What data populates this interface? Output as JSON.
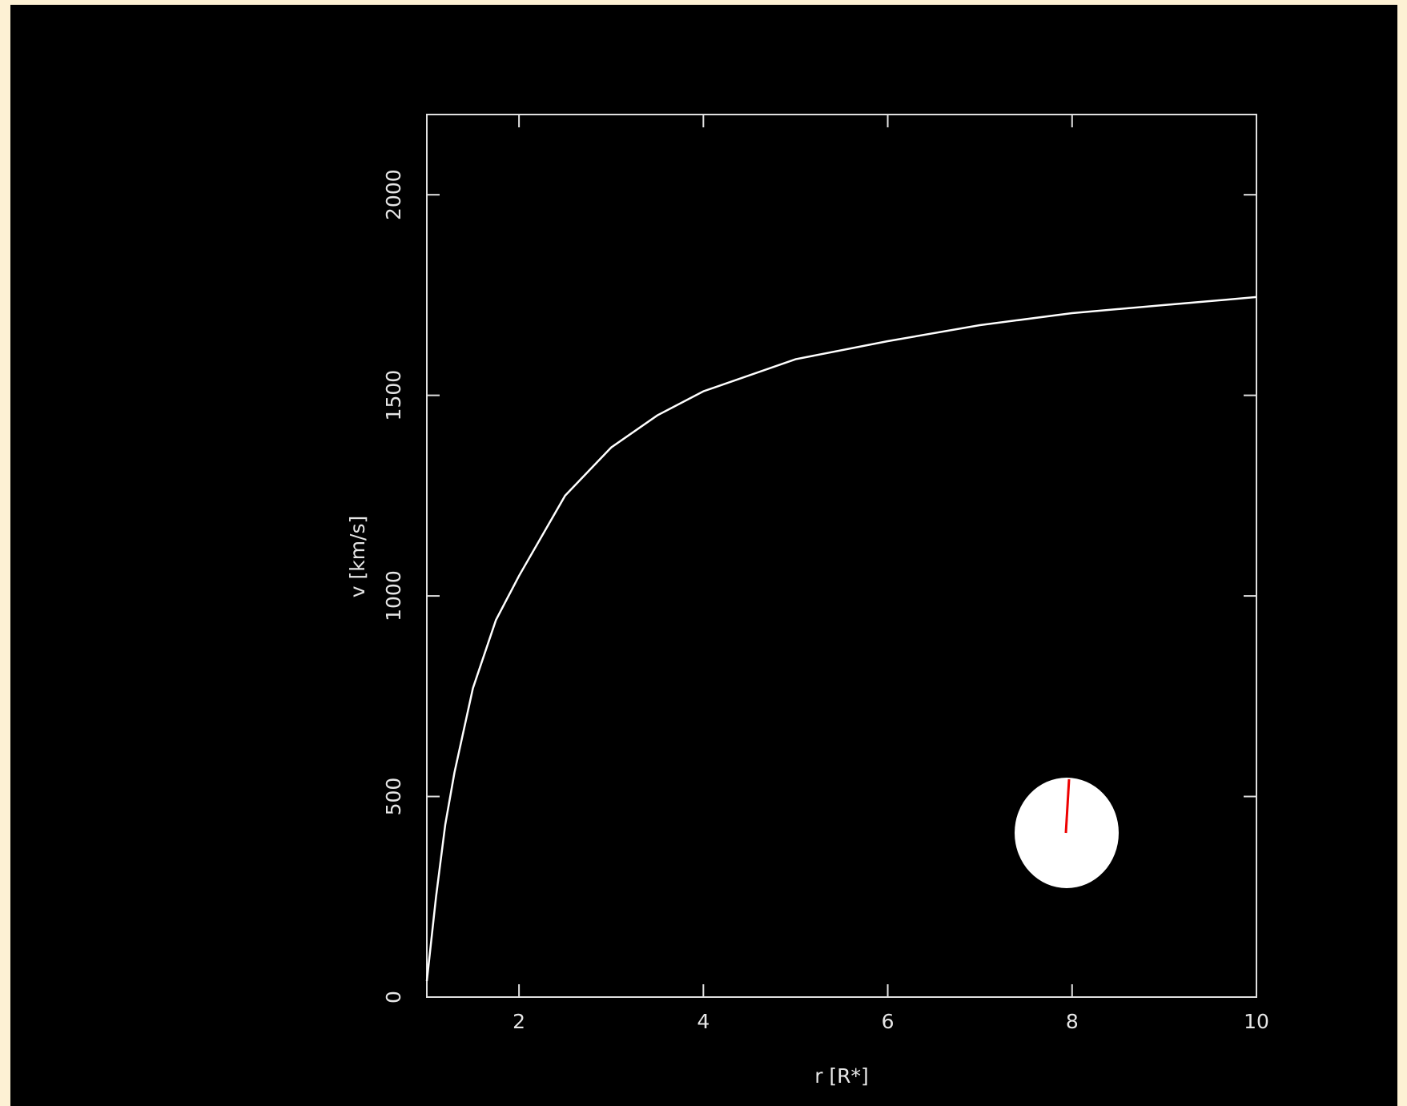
{
  "chart_data": {
    "type": "line",
    "x_label": "r [R*]",
    "y_label": "v [km/s]",
    "x": [
      1.0,
      1.1,
      1.2,
      1.3,
      1.5,
      1.75,
      2,
      2.5,
      3,
      3.5,
      4,
      5,
      6,
      7,
      8,
      9,
      10
    ],
    "series": [
      {
        "color": "#ffffff",
        "values": [
          40,
          250,
          430,
          560,
          770,
          940,
          1050,
          1250,
          1370,
          1450,
          1510,
          1590,
          1635,
          1675,
          1705,
          1725,
          1745
        ]
      }
    ],
    "xlim": [
      1,
      10
    ],
    "xticks": [
      2,
      4,
      6,
      8,
      10
    ],
    "ylim": [
      0,
      2200
    ],
    "yticks": [
      0,
      500,
      1000,
      1500,
      2000
    ]
  }
}
